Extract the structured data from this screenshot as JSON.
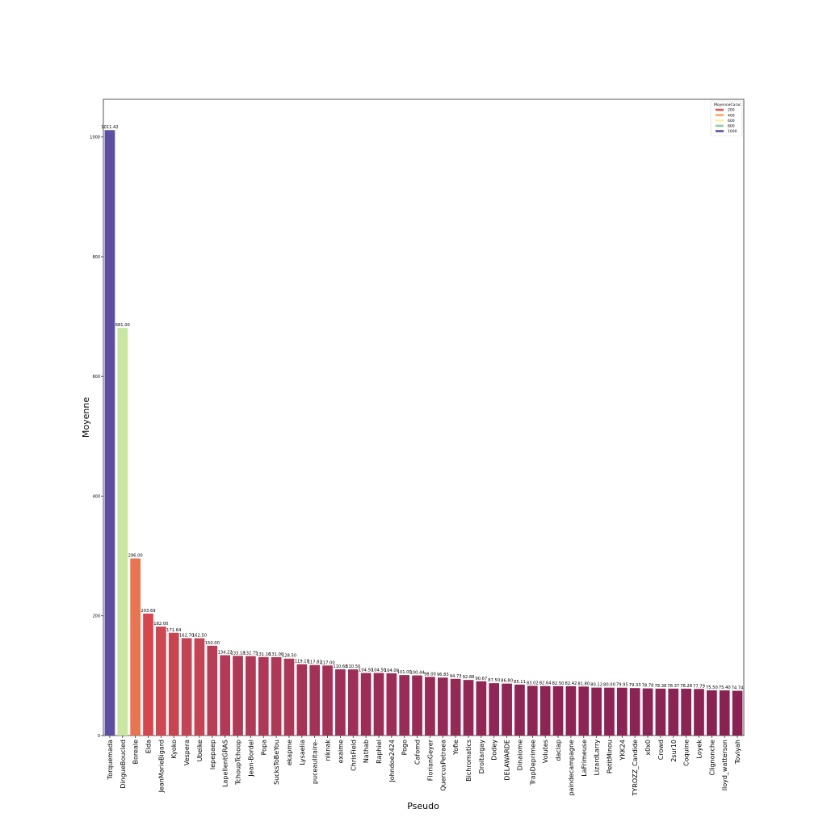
{
  "chart_data": {
    "type": "bar",
    "title": "",
    "xlabel": "Pseudo",
    "ylabel": "Moyenne",
    "ylim": [
      0,
      1063
    ],
    "yticks": [
      "0",
      "200",
      "400",
      "600",
      "800",
      "1000"
    ],
    "grid": false,
    "legend": {
      "title": "MoyenneCarac",
      "placement": "top-right",
      "entries": [
        {
          "label": "200",
          "color": "#e8524a"
        },
        {
          "label": "400",
          "color": "#f9a65a"
        },
        {
          "label": "600",
          "color": "#fbf0a0"
        },
        {
          "label": "800",
          "color": "#8fcfa3"
        },
        {
          "label": "1000",
          "color": "#5e4fa2"
        }
      ]
    },
    "categories": [
      "Torquemada",
      "DingueBoucled",
      "Boreale",
      "Elda",
      "JeanMarieBigard",
      "Kyoko",
      "Vespera",
      "Ubeike",
      "lepepaep",
      "LapellentGRAS",
      "TchoupTchoop",
      "Jean-Bordel",
      "Popa",
      "SucksToBeYou",
      "ekapme",
      "Lysaelia",
      "puceaulitaire-",
      "niknak",
      "exaime",
      "ChrisField",
      "Nathab",
      "Raphiel",
      "Johndoe2424",
      "Pogo",
      "Cafomd",
      "FlorianGeyer",
      "QuercusPetraea",
      "Yofie",
      "Bichromatics",
      "Droitargay",
      "Dodey",
      "DELAWARDE",
      "Dinaiome",
      "TrapDeprimee",
      "Volutes",
      "daclap",
      "paindecampagne",
      "LaFrimeuse",
      "LizardLarry",
      "PetitMinou",
      "YKK24",
      "TYROZZ_Candide",
      "x0x0",
      "Crowd",
      "2sur10",
      "Coquine",
      "Loyek",
      "Clignonche",
      "lloyd_watterson",
      "Toviyah"
    ],
    "values": [
      1011.42,
      681.0,
      296.0,
      203.69,
      182.0,
      171.64,
      162.7,
      162.5,
      150.0,
      134.22,
      133.18,
      132.75,
      131.16,
      131.0,
      128.5,
      119.18,
      117.82,
      117.0,
      110.68,
      110.5,
      104.5,
      104.5,
      104.0,
      101.0,
      100.44,
      98.0,
      96.83,
      94.73,
      92.88,
      90.67,
      87.5,
      86.8,
      85.11,
      83.02,
      82.64,
      82.5,
      82.42,
      81.8,
      80.12,
      80.0,
      79.95,
      79.33,
      78.78,
      78.38,
      78.37,
      78.28,
      77.79,
      75.5,
      75.4,
      74.74
    ],
    "value_labels": [
      "1011.42",
      "681.00",
      "296.00",
      "203.69",
      "182.00",
      "171.64",
      "162.70",
      "162.50",
      "150.00",
      "134.22",
      "133.18",
      "132.75",
      "131.16",
      "131.00",
      "128.50",
      "119.18",
      "117.82",
      "117.00",
      "110.68",
      "110.50",
      "104.50",
      "104.50",
      "104.00",
      "101.00",
      "100.44",
      "98.00",
      "96.83",
      "94.73",
      "92.88",
      "90.67",
      "87.50",
      "86.80",
      "85.11",
      "83.02",
      "82.64",
      "82.50",
      "82.42",
      "81.80",
      "80.12",
      "80.00",
      "79.95",
      "79.33",
      "78.78",
      "78.38",
      "78.37",
      "78.28",
      "77.79",
      "75.50",
      "75.40",
      "74.74"
    ],
    "colors": [
      "#5e4fa2",
      "#c7e89e",
      "#e8754f",
      "#d8464c",
      "#cf4750",
      "#c94450",
      "#c44453",
      "#c44453",
      "#b93e55",
      "#b33a56",
      "#b13955",
      "#b03955",
      "#ae3856",
      "#ae3856",
      "#ac3757",
      "#a63356",
      "#a43256",
      "#a43256",
      "#a02f57",
      "#a02f57",
      "#9c2d57",
      "#9c2d57",
      "#9b2d57",
      "#992b57",
      "#992b57",
      "#972a56",
      "#962a56",
      "#952956",
      "#932856",
      "#922756",
      "#902655",
      "#902655",
      "#8f2555",
      "#8e2454",
      "#8e2454",
      "#8e2454",
      "#8e2454",
      "#8d2454",
      "#8c2354",
      "#8c2354",
      "#8c2354",
      "#8b2354",
      "#8b2354",
      "#8b2354",
      "#8b2354",
      "#8b2354",
      "#8a2253",
      "#892253",
      "#892253",
      "#892253"
    ]
  }
}
